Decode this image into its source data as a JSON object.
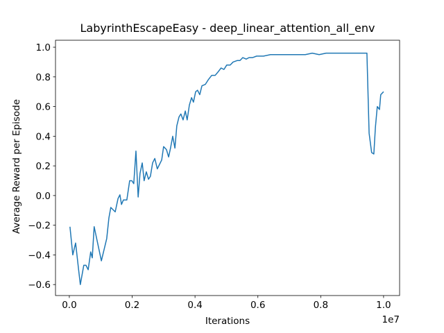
{
  "chart_data": {
    "type": "line",
    "title": "LabyrinthEscapeEasy - deep_linear_attention_all_env",
    "xlabel": "Iterations",
    "ylabel": "Average Reward per Episode",
    "x_offset_label": "1e7",
    "color": "#1f77b4",
    "xlim": [
      -0.044,
      1.051
    ],
    "ylim": [
      -0.674,
      1.047
    ],
    "xticks": [
      {
        "value": 0,
        "label": "0.0"
      },
      0.2,
      0.4,
      0.6,
      0.8,
      {
        "value": 1,
        "label": "1.0"
      }
    ],
    "yticks": [
      {
        "value": -0.6,
        "label": "−0.6"
      },
      {
        "value": -0.4,
        "label": "−0.4"
      },
      {
        "value": -0.2,
        "label": "−0.2"
      },
      {
        "value": 0,
        "label": "0.0"
      },
      0.2,
      0.4,
      0.6,
      0.8,
      {
        "value": 1,
        "label": "1.0"
      }
    ],
    "x": [
      0.002,
      0.011,
      0.02,
      0.029,
      0.035,
      0.046,
      0.053,
      0.06,
      0.068,
      0.073,
      0.079,
      0.088,
      0.102,
      0.119,
      0.126,
      0.132,
      0.146,
      0.155,
      0.161,
      0.166,
      0.172,
      0.183,
      0.192,
      0.199,
      0.205,
      0.212,
      0.219,
      0.225,
      0.232,
      0.238,
      0.245,
      0.252,
      0.258,
      0.265,
      0.272,
      0.28,
      0.294,
      0.3,
      0.309,
      0.316,
      0.322,
      0.329,
      0.336,
      0.342,
      0.349,
      0.355,
      0.362,
      0.369,
      0.375,
      0.382,
      0.389,
      0.395,
      0.402,
      0.408,
      0.415,
      0.422,
      0.433,
      0.442,
      0.453,
      0.464,
      0.472,
      0.483,
      0.492,
      0.501,
      0.512,
      0.521,
      0.534,
      0.543,
      0.552,
      0.563,
      0.572,
      0.583,
      0.596,
      0.618,
      0.64,
      0.662,
      0.684,
      0.706,
      0.728,
      0.751,
      0.773,
      0.795,
      0.817,
      0.839,
      0.861,
      0.883,
      0.905,
      0.927,
      0.947,
      0.954,
      0.962,
      0.969,
      0.974,
      0.98,
      0.987,
      0.991,
      1.0
    ],
    "values": [
      -0.21,
      -0.4,
      -0.32,
      -0.49,
      -0.6,
      -0.47,
      -0.47,
      -0.5,
      -0.38,
      -0.42,
      -0.21,
      -0.3,
      -0.44,
      -0.29,
      -0.15,
      -0.08,
      -0.11,
      -0.02,
      0.005,
      -0.06,
      -0.03,
      -0.03,
      0.1,
      0.1,
      0.08,
      0.3,
      -0.01,
      0.15,
      0.22,
      0.1,
      0.16,
      0.11,
      0.13,
      0.22,
      0.25,
      0.18,
      0.24,
      0.33,
      0.31,
      0.26,
      0.32,
      0.4,
      0.32,
      0.47,
      0.53,
      0.55,
      0.51,
      0.57,
      0.51,
      0.61,
      0.66,
      0.63,
      0.7,
      0.71,
      0.68,
      0.74,
      0.75,
      0.78,
      0.81,
      0.81,
      0.83,
      0.86,
      0.85,
      0.88,
      0.88,
      0.9,
      0.91,
      0.91,
      0.93,
      0.92,
      0.93,
      0.93,
      0.94,
      0.94,
      0.95,
      0.95,
      0.95,
      0.95,
      0.95,
      0.95,
      0.96,
      0.95,
      0.96,
      0.96,
      0.96,
      0.96,
      0.96,
      0.96,
      0.96,
      0.42,
      0.29,
      0.28,
      0.46,
      0.6,
      0.58,
      0.68,
      0.7
    ]
  }
}
